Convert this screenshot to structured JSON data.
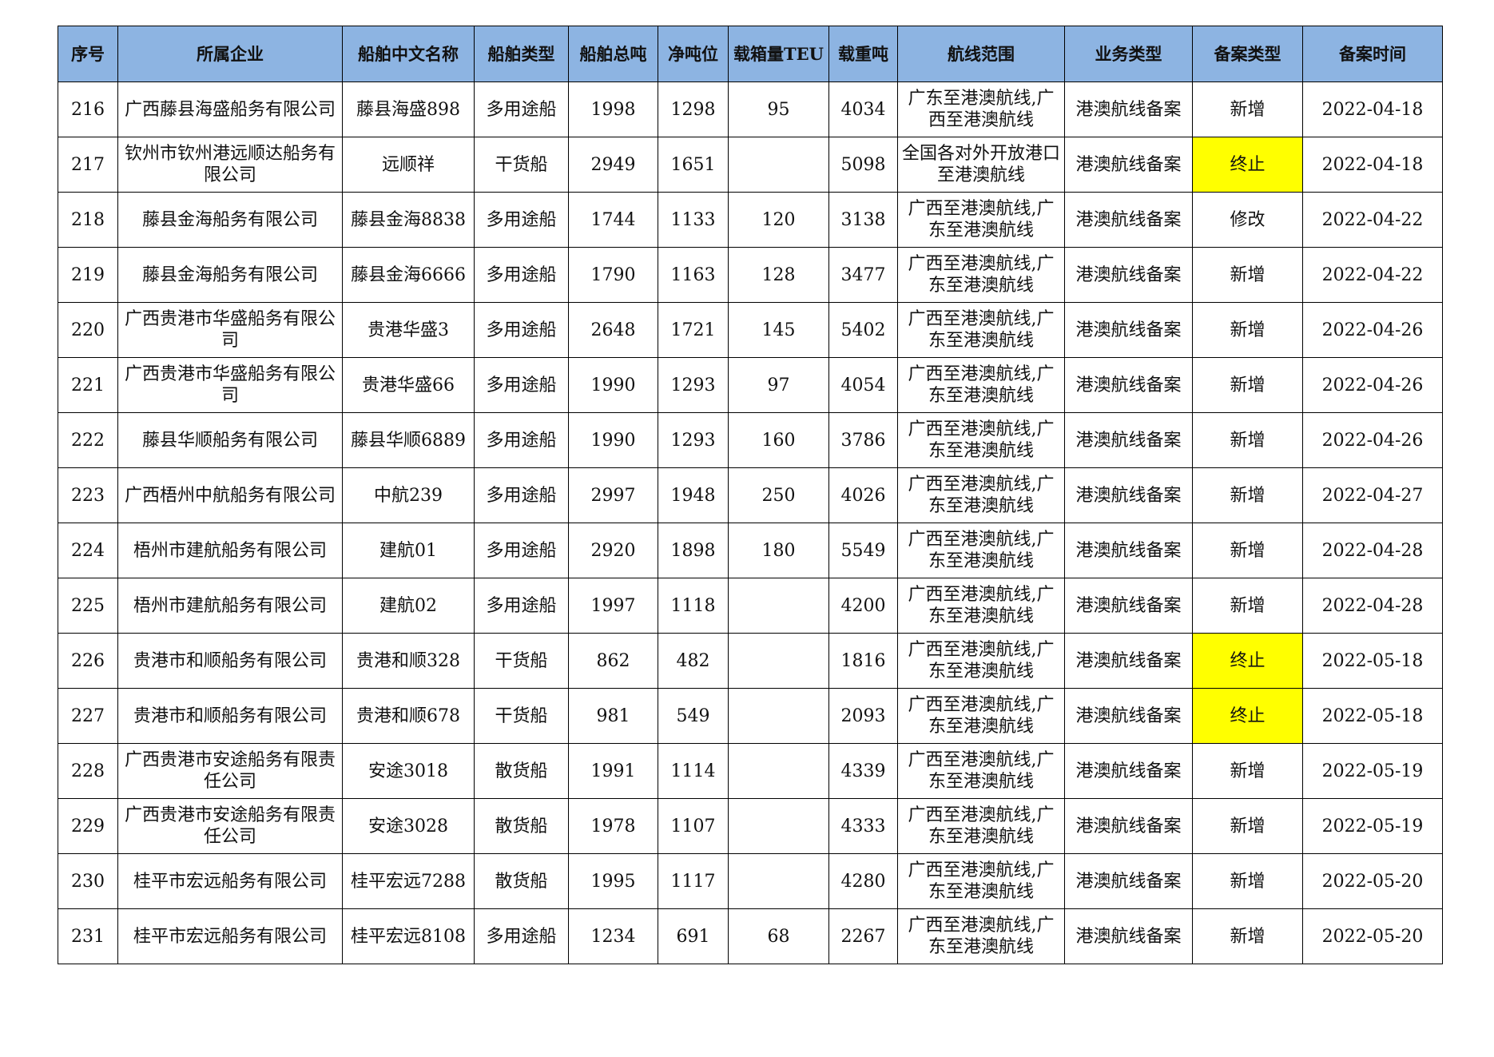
{
  "table": {
    "header": [
      "序号",
      "所属企业",
      "船舶中文名称",
      "船舶类型",
      "船舶总吨",
      "净吨位",
      "载箱量TEU",
      "载重吨",
      "航线范围",
      "业务类型",
      "备案类型",
      "备案时间"
    ],
    "header_fill": "#8db4e2",
    "rows": [
      [
        "216",
        "广西藤县海盛船务有限公司",
        "藤县海盛898",
        "多用途船",
        "1998",
        "1298",
        "95",
        "4034",
        "广东至港澳航线,广西至港澳航线",
        "港澳航线备案",
        "新增",
        "2022-04-18"
      ],
      [
        "217",
        "钦州市钦州港远顺达船务有限公司",
        "远顺祥",
        "干货船",
        "2949",
        "1651",
        null,
        "5098",
        "全国各对外开放港口至港澳航线",
        "港澳航线备案",
        {
          "text": "终止",
          "fill": "#ffff00"
        },
        "2022-04-18"
      ],
      [
        "218",
        "藤县金海船务有限公司",
        "藤县金海8838",
        "多用途船",
        "1744",
        "1133",
        "120",
        "3138",
        "广西至港澳航线,广东至港澳航线",
        "港澳航线备案",
        "修改",
        "2022-04-22"
      ],
      [
        "219",
        "藤县金海船务有限公司",
        "藤县金海6666",
        "多用途船",
        "1790",
        "1163",
        "128",
        "3477",
        "广西至港澳航线,广东至港澳航线",
        "港澳航线备案",
        "新增",
        "2022-04-22"
      ],
      [
        "220",
        "广西贵港市华盛船务有限公司",
        "贵港华盛3",
        "多用途船",
        "2648",
        "1721",
        "145",
        "5402",
        "广西至港澳航线,广东至港澳航线",
        "港澳航线备案",
        "新增",
        "2022-04-26"
      ],
      [
        "221",
        "广西贵港市华盛船务有限公司",
        "贵港华盛66",
        "多用途船",
        "1990",
        "1293",
        "97",
        "4054",
        "广西至港澳航线,广东至港澳航线",
        "港澳航线备案",
        "新增",
        "2022-04-26"
      ],
      [
        "222",
        "藤县华顺船务有限公司",
        "藤县华顺6889",
        "多用途船",
        "1990",
        "1293",
        "160",
        "3786",
        "广西至港澳航线,广东至港澳航线",
        "港澳航线备案",
        "新增",
        "2022-04-26"
      ],
      [
        "223",
        "广西梧州中航船务有限公司",
        "中航239",
        "多用途船",
        "2997",
        "1948",
        "250",
        "4026",
        "广西至港澳航线,广东至港澳航线",
        "港澳航线备案",
        "新增",
        "2022-04-27"
      ],
      [
        "224",
        "梧州市建航船务有限公司",
        "建航01",
        "多用途船",
        "2920",
        "1898",
        "180",
        "5549",
        "广西至港澳航线,广东至港澳航线",
        "港澳航线备案",
        "新增",
        "2022-04-28"
      ],
      [
        "225",
        "梧州市建航船务有限公司",
        "建航02",
        "多用途船",
        "1997",
        "1118",
        null,
        "4200",
        "广西至港澳航线,广东至港澳航线",
        "港澳航线备案",
        "新增",
        "2022-04-28"
      ],
      [
        "226",
        "贵港市和顺船务有限公司",
        "贵港和顺328",
        "干货船",
        "862",
        "482",
        null,
        "1816",
        "广西至港澳航线,广东至港澳航线",
        "港澳航线备案",
        {
          "text": "终止",
          "fill": "#ffff00"
        },
        "2022-05-18"
      ],
      [
        "227",
        "贵港市和顺船务有限公司",
        "贵港和顺678",
        "干货船",
        "981",
        "549",
        null,
        "2093",
        "广西至港澳航线,广东至港澳航线",
        "港澳航线备案",
        {
          "text": "终止",
          "fill": "#ffff00"
        },
        "2022-05-18"
      ],
      [
        "228",
        "广西贵港市安途船务有限责任公司",
        "安途3018",
        "散货船",
        "1991",
        "1114",
        null,
        "4339",
        "广西至港澳航线,广东至港澳航线",
        "港澳航线备案",
        "新增",
        "2022-05-19"
      ],
      [
        "229",
        "广西贵港市安途船务有限责任公司",
        "安途3028",
        "散货船",
        "1978",
        "1107",
        null,
        "4333",
        "广西至港澳航线,广东至港澳航线",
        "港澳航线备案",
        "新增",
        "2022-05-19"
      ],
      [
        "230",
        "桂平市宏远船务有限公司",
        "桂平宏远7288",
        "散货船",
        "1995",
        "1117",
        null,
        "4280",
        "广西至港澳航线,广东至港澳航线",
        "港澳航线备案",
        "新增",
        "2022-05-20"
      ],
      [
        "231",
        "桂平市宏远船务有限公司",
        "桂平宏远8108",
        "多用途船",
        "1234",
        "691",
        "68",
        "2267",
        "广西至港澳航线,广东至港澳航线",
        "港澳航线备案",
        "新增",
        "2022-05-20"
      ]
    ]
  }
}
